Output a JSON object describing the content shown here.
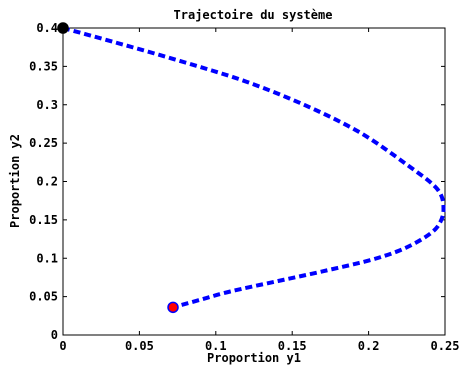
{
  "chart_data": {
    "type": "line",
    "title": "Trajectoire du système",
    "xlabel": "Proportion y1",
    "ylabel": "Proportion y2",
    "xlim": [
      0,
      0.25
    ],
    "ylim": [
      0,
      0.4
    ],
    "x_ticks": [
      "0",
      "0.05",
      "0.1",
      "0.15",
      "0.2",
      "0.25"
    ],
    "y_ticks": [
      "0",
      "0.05",
      "0.1",
      "0.15",
      "0.2",
      "0.25",
      "0.3",
      "0.35",
      "0.4"
    ],
    "grid": false,
    "series": [
      {
        "line_style": "dashed",
        "color": "#0000ff",
        "x": [
          0.0,
          0.04,
          0.08,
          0.12,
          0.16,
          0.195,
          0.225,
          0.245,
          0.249,
          0.245,
          0.235,
          0.22,
          0.2,
          0.17,
          0.14,
          0.11,
          0.09,
          0.072
        ],
        "y": [
          0.4,
          0.378,
          0.355,
          0.33,
          0.298,
          0.263,
          0.222,
          0.19,
          0.163,
          0.141,
          0.125,
          0.11,
          0.097,
          0.083,
          0.07,
          0.057,
          0.046,
          0.036
        ]
      }
    ],
    "markers": [
      {
        "name": "start",
        "x": 0.0,
        "y": 0.4,
        "color": "#000000"
      },
      {
        "name": "end",
        "x": 0.072,
        "y": 0.036,
        "color": "#ff0000",
        "edge_color": "#0000ff"
      }
    ]
  }
}
